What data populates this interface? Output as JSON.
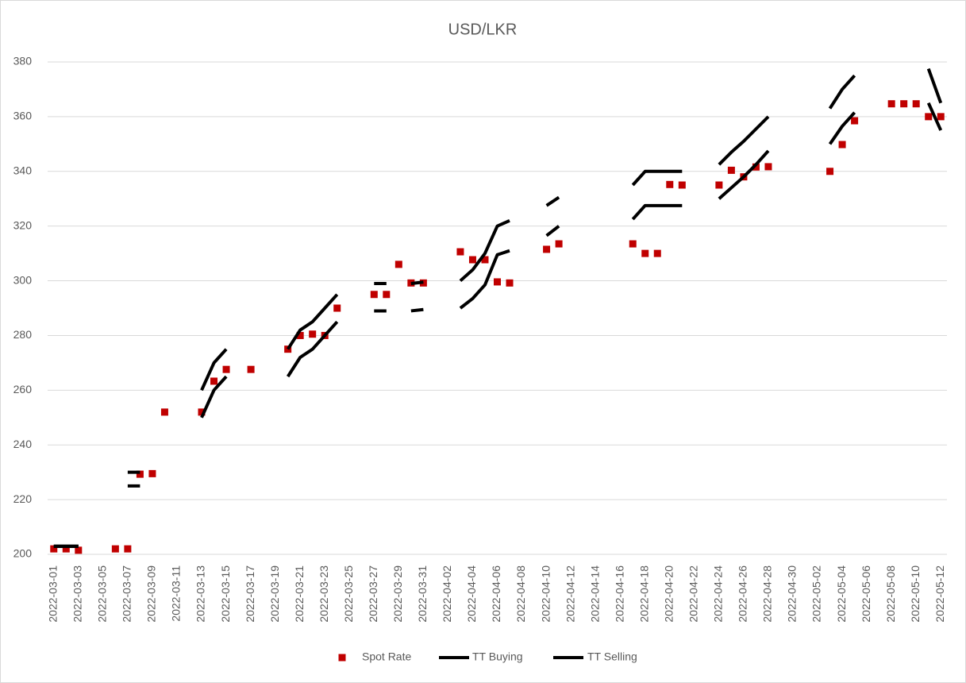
{
  "chart_data": {
    "type": "combo",
    "title": "USD/LKR",
    "categories": [
      "2022-03-01",
      null,
      "2022-03-03",
      null,
      "2022-03-05",
      null,
      "2022-03-07",
      null,
      "2022-03-09",
      null,
      "2022-03-11",
      null,
      "2022-03-13",
      null,
      "2022-03-15",
      null,
      "2022-03-17",
      null,
      "2022-03-19",
      null,
      "2022-03-21",
      null,
      "2022-03-23",
      null,
      "2022-03-25",
      null,
      "2022-03-27",
      null,
      "2022-03-29",
      null,
      "2022-03-31",
      null,
      "2022-04-02",
      null,
      "2022-04-04",
      null,
      "2022-04-06",
      null,
      "2022-04-08",
      null,
      "2022-04-10",
      null,
      "2022-04-12",
      null,
      "2022-04-14",
      null,
      "2022-04-16",
      null,
      "2022-04-18",
      null,
      "2022-04-20",
      null,
      "2022-04-22",
      null,
      "2022-04-24",
      null,
      "2022-04-26",
      null,
      "2022-04-28",
      null,
      "2022-04-30",
      null,
      "2022-05-02",
      null,
      "2022-05-04",
      null,
      "2022-05-06",
      null,
      "2022-05-08",
      null,
      "2022-05-10",
      null,
      "2022-05-12"
    ],
    "series": [
      {
        "name": "Spot Rate",
        "type": "scatter",
        "color": "#c00000",
        "values": [
          202,
          202,
          201.5,
          null,
          null,
          202,
          202,
          229.3,
          229.5,
          252,
          null,
          null,
          252,
          263.3,
          267.6,
          null,
          267.6,
          null,
          null,
          275,
          280,
          280.5,
          280,
          290,
          null,
          null,
          295,
          295,
          306,
          299.2,
          299.2,
          null,
          null,
          310.6,
          307.7,
          307.7,
          299.6,
          299.2,
          null,
          null,
          311.5,
          313.5,
          null,
          null,
          null,
          null,
          null,
          313.5,
          310,
          310,
          335.2,
          335,
          null,
          null,
          335,
          340.4,
          338,
          341.6,
          341.7,
          null,
          null,
          null,
          null,
          340,
          349.8,
          358.5,
          null,
          null,
          364.7,
          364.7,
          364.7,
          360,
          360
        ]
      },
      {
        "name": "TT Buying",
        "type": "line",
        "color": "#000000",
        "values": [
          202.9,
          202.9,
          202.9,
          null,
          null,
          null,
          225,
          225,
          null,
          null,
          null,
          null,
          250,
          260,
          265,
          null,
          null,
          null,
          null,
          265,
          272,
          275,
          280,
          285,
          null,
          null,
          289,
          289,
          null,
          289,
          289.5,
          null,
          null,
          290,
          293.5,
          298.5,
          309.5,
          311,
          null,
          null,
          316.5,
          320,
          null,
          null,
          null,
          null,
          null,
          322.5,
          327.5,
          327.5,
          327.5,
          327.5,
          null,
          null,
          330,
          334,
          338,
          342.5,
          347.5,
          null,
          null,
          null,
          null,
          350,
          356.5,
          361.5,
          null,
          null,
          null,
          null,
          null,
          365,
          355
        ]
      },
      {
        "name": "TT Selling",
        "type": "line",
        "color": "#000000",
        "values": [
          203,
          203,
          203,
          null,
          null,
          null,
          230,
          230,
          null,
          null,
          null,
          null,
          260,
          270,
          275,
          null,
          null,
          null,
          null,
          275,
          282,
          285,
          290,
          295,
          null,
          null,
          299,
          299,
          null,
          299,
          299.5,
          null,
          null,
          300,
          304,
          310,
          320,
          322,
          null,
          null,
          327.5,
          330.5,
          null,
          null,
          null,
          null,
          null,
          335,
          340,
          340,
          340,
          340,
          null,
          null,
          342.5,
          347,
          351,
          355.5,
          360,
          null,
          null,
          null,
          null,
          363,
          370,
          375,
          null,
          null,
          null,
          null,
          null,
          377.5,
          365
        ]
      }
    ],
    "ylim": [
      200,
      380
    ],
    "yticks": [
      200,
      220,
      240,
      260,
      280,
      300,
      320,
      340,
      360,
      380
    ],
    "grid": true,
    "legend": "bottom"
  }
}
